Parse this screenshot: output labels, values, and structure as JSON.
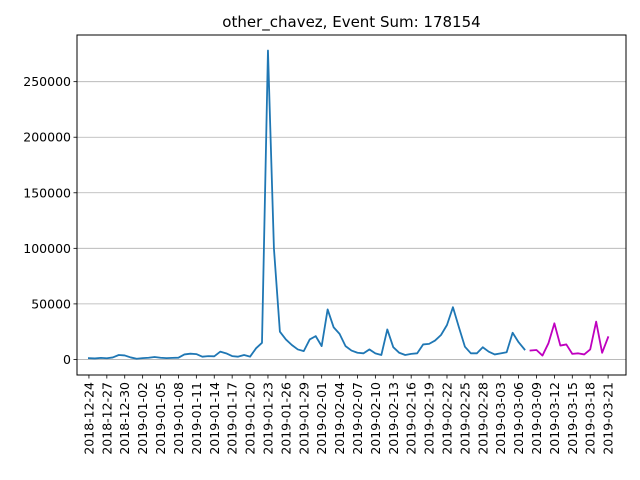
{
  "chart_data": {
    "type": "line",
    "title": "other_chavez, Event Sum: 178154",
    "xlabel": "",
    "ylabel": "",
    "grid": "horizontal",
    "ylim": [
      -14000,
      292000
    ],
    "y_ticks": [
      0,
      50000,
      100000,
      150000,
      200000,
      250000
    ],
    "y_tick_labels": [
      "0",
      "50000",
      "100000",
      "150000",
      "200000",
      "250000"
    ],
    "x_tick_labels": [
      "2018-12-24",
      "2018-12-27",
      "2018-12-30",
      "2019-01-02",
      "2019-01-05",
      "2019-01-08",
      "2019-01-11",
      "2019-01-14",
      "2019-01-17",
      "2019-01-20",
      "2019-01-23",
      "2019-01-26",
      "2019-01-29",
      "2019-02-01",
      "2019-02-04",
      "2019-02-07",
      "2019-02-10",
      "2019-02-13",
      "2019-02-16",
      "2019-02-19",
      "2019-02-22",
      "2019-02-25",
      "2019-02-28",
      "2019-03-03",
      "2019-03-06",
      "2019-03-09",
      "2019-03-12",
      "2019-03-15",
      "2019-03-18",
      "2019-03-21"
    ],
    "x_range": [
      "2018-12-22",
      "2019-03-24"
    ],
    "series": [
      {
        "color": "#1f77b4",
        "x": [
          "2018-12-24",
          "2018-12-25",
          "2018-12-26",
          "2018-12-27",
          "2018-12-28",
          "2018-12-29",
          "2018-12-30",
          "2018-12-31",
          "2019-01-01",
          "2019-01-02",
          "2019-01-03",
          "2019-01-04",
          "2019-01-05",
          "2019-01-06",
          "2019-01-07",
          "2019-01-08",
          "2019-01-09",
          "2019-01-10",
          "2019-01-11",
          "2019-01-12",
          "2019-01-13",
          "2019-01-14",
          "2019-01-15",
          "2019-01-16",
          "2019-01-17",
          "2019-01-18",
          "2019-01-19",
          "2019-01-20",
          "2019-01-21",
          "2019-01-22",
          "2019-01-23",
          "2019-01-24",
          "2019-01-25",
          "2019-01-26",
          "2019-01-27",
          "2019-01-28",
          "2019-01-29",
          "2019-01-30",
          "2019-01-31",
          "2019-02-01",
          "2019-02-02",
          "2019-02-03",
          "2019-02-04",
          "2019-02-05",
          "2019-02-06",
          "2019-02-07",
          "2019-02-08",
          "2019-02-09",
          "2019-02-10",
          "2019-02-11",
          "2019-02-12",
          "2019-02-13",
          "2019-02-14",
          "2019-02-15",
          "2019-02-16",
          "2019-02-17",
          "2019-02-18",
          "2019-02-19",
          "2019-02-20",
          "2019-02-21",
          "2019-02-22",
          "2019-02-23",
          "2019-02-24",
          "2019-02-25",
          "2019-02-26",
          "2019-02-27",
          "2019-02-28",
          "2019-03-01",
          "2019-03-02",
          "2019-03-03",
          "2019-03-04",
          "2019-03-05",
          "2019-03-06",
          "2019-03-07"
        ],
        "y": [
          1200,
          900,
          1400,
          1100,
          1800,
          4000,
          3600,
          1800,
          600,
          1200,
          1500,
          2200,
          1500,
          1200,
          1400,
          1600,
          4500,
          5200,
          4800,
          2500,
          3000,
          2800,
          7000,
          5500,
          3000,
          2500,
          4000,
          2500,
          10000,
          15000,
          278000,
          100000,
          25000,
          18000,
          13000,
          9000,
          7500,
          18000,
          21000,
          12000,
          45000,
          29000,
          23000,
          12000,
          8000,
          6000,
          5500,
          9000,
          5500,
          4000,
          27000,
          11000,
          6000,
          4000,
          5000,
          5500,
          13500,
          14000,
          17000,
          22000,
          31000,
          47000,
          29000,
          11500,
          5500,
          5500,
          11000,
          7000,
          4500,
          5500,
          6500,
          24000,
          15500,
          9000
        ]
      },
      {
        "color": "#bf00bf",
        "x": [
          "2019-03-08",
          "2019-03-09",
          "2019-03-10",
          "2019-03-11",
          "2019-03-12",
          "2019-03-13",
          "2019-03-14",
          "2019-03-15",
          "2019-03-16",
          "2019-03-17",
          "2019-03-18",
          "2019-03-19",
          "2019-03-20",
          "2019-03-21"
        ],
        "y": [
          8000,
          8500,
          3500,
          14500,
          32500,
          12500,
          13500,
          5000,
          5500,
          4500,
          9000,
          34000,
          6000,
          20000
        ]
      }
    ]
  }
}
